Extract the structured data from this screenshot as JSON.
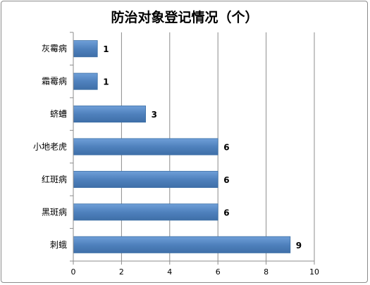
{
  "chart_data": {
    "type": "bar",
    "orientation": "horizontal",
    "title": "防治对象登记情况（个）",
    "categories": [
      "灰霉病",
      "霜霉病",
      "蛴螬",
      "小地老虎",
      "红斑病",
      "黑斑病",
      "刺蛾"
    ],
    "values": [
      1,
      1,
      3,
      6,
      6,
      6,
      9
    ],
    "xlim": [
      0,
      10
    ],
    "xticks": [
      0,
      2,
      4,
      6,
      8,
      10
    ],
    "grid": true,
    "legend": "none",
    "bar_color": "#4f81bd",
    "data_labels": true
  }
}
